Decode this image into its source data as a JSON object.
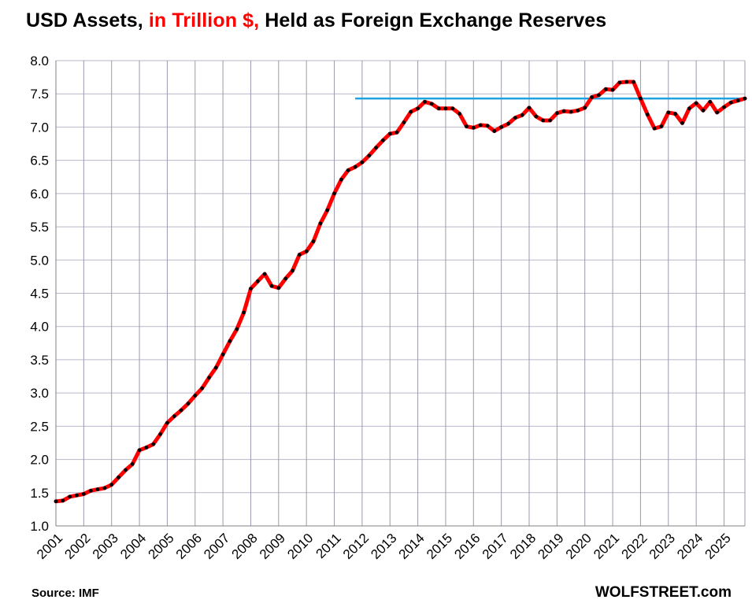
{
  "title": {
    "part1": "USD Assets, ",
    "part2": "in Trillion $,",
    "part3": " Held as Foreign Exchange Reserves",
    "accent_color": "#ff0000"
  },
  "footer": {
    "source": "Source: IMF",
    "brand": "WOLFSTREET.com"
  },
  "chart_data": {
    "type": "line",
    "title": "USD Assets, in Trillion $, Held as Foreign Exchange Reserves",
    "xlabel": "",
    "ylabel": "",
    "ylim": [
      1.0,
      8.0
    ],
    "ytick_step": 0.5,
    "x_start": 2001,
    "x_end": 2025.75,
    "grid": true,
    "categories": [
      "2001",
      "2002",
      "2003",
      "2004",
      "2005",
      "2006",
      "2007",
      "2008",
      "2009",
      "2010",
      "2011",
      "2012",
      "2013",
      "2014",
      "2015",
      "2016",
      "2017",
      "2018",
      "2019",
      "2020",
      "2021",
      "2022",
      "2023",
      "2024",
      "2025"
    ],
    "series": [
      {
        "name": "USD Assets (Trillion $)",
        "color": "#ff0000",
        "marker_color": "#000000",
        "x": [
          2001.0,
          2001.25,
          2001.5,
          2001.75,
          2002.0,
          2002.25,
          2002.5,
          2002.75,
          2003.0,
          2003.25,
          2003.5,
          2003.75,
          2004.0,
          2004.25,
          2004.5,
          2004.75,
          2005.0,
          2005.25,
          2005.5,
          2005.75,
          2006.0,
          2006.25,
          2006.5,
          2006.75,
          2007.0,
          2007.25,
          2007.5,
          2007.75,
          2008.0,
          2008.25,
          2008.5,
          2008.75,
          2009.0,
          2009.25,
          2009.5,
          2009.75,
          2010.0,
          2010.25,
          2010.5,
          2010.75,
          2011.0,
          2011.25,
          2011.5,
          2011.75,
          2012.0,
          2012.25,
          2012.5,
          2012.75,
          2013.0,
          2013.25,
          2013.5,
          2013.75,
          2014.0,
          2014.25,
          2014.5,
          2014.75,
          2015.0,
          2015.25,
          2015.5,
          2015.75,
          2016.0,
          2016.25,
          2016.5,
          2016.75,
          2017.0,
          2017.25,
          2017.5,
          2017.75,
          2018.0,
          2018.25,
          2018.5,
          2018.75,
          2019.0,
          2019.25,
          2019.5,
          2019.75,
          2020.0,
          2020.25,
          2020.5,
          2020.75,
          2021.0,
          2021.25,
          2021.5,
          2021.75,
          2022.0,
          2022.25,
          2022.5,
          2022.75,
          2023.0,
          2023.25,
          2023.5,
          2023.75,
          2024.0,
          2024.25,
          2024.5,
          2024.75,
          2025.0,
          2025.25,
          2025.5,
          2025.75
        ],
        "values": [
          1.37,
          1.38,
          1.44,
          1.46,
          1.48,
          1.53,
          1.55,
          1.57,
          1.62,
          1.73,
          1.84,
          1.93,
          2.14,
          2.18,
          2.23,
          2.38,
          2.55,
          2.65,
          2.74,
          2.84,
          2.96,
          3.07,
          3.23,
          3.38,
          3.58,
          3.78,
          3.96,
          4.21,
          4.57,
          4.68,
          4.79,
          4.61,
          4.58,
          4.72,
          4.84,
          5.08,
          5.13,
          5.28,
          5.55,
          5.75,
          6.0,
          6.21,
          6.35,
          6.4,
          6.47,
          6.57,
          6.69,
          6.8,
          6.9,
          6.92,
          7.07,
          7.23,
          7.28,
          7.38,
          7.35,
          7.28,
          7.28,
          7.28,
          7.2,
          7.01,
          6.99,
          7.03,
          7.02,
          6.94,
          7.0,
          7.05,
          7.14,
          7.18,
          7.29,
          7.16,
          7.1,
          7.1,
          7.21,
          7.24,
          7.23,
          7.25,
          7.29,
          7.45,
          7.48,
          7.57,
          7.56,
          7.67,
          7.68,
          7.68,
          7.43,
          7.19,
          6.98,
          7.01,
          7.22,
          7.2,
          7.06,
          7.28,
          7.36,
          7.25,
          7.38,
          7.22,
          7.3,
          7.37,
          7.4,
          7.43
        ]
      }
    ],
    "annotations": [
      {
        "type": "hline",
        "y": 7.43,
        "x_from": 2011.75,
        "x_to": 2025.75,
        "color": "#1ea3e0"
      }
    ]
  }
}
